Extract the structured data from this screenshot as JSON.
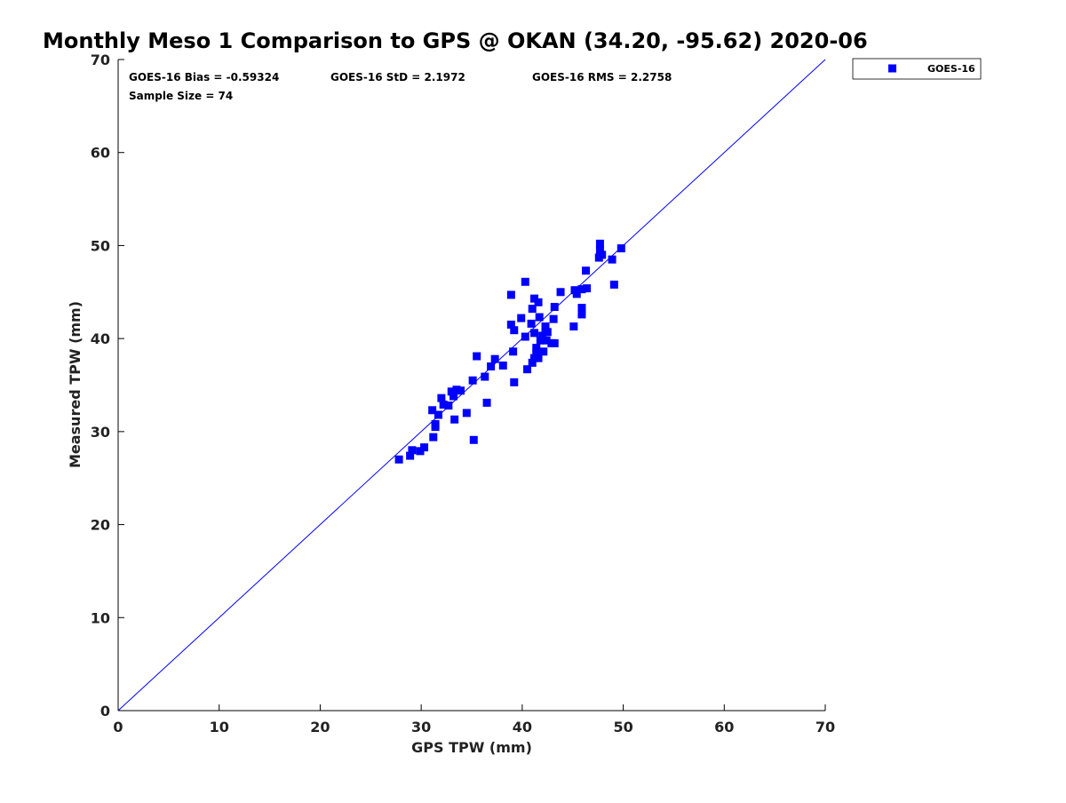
{
  "chart_data": {
    "type": "scatter",
    "title": "Monthly Meso 1 Comparison to GPS @ OKAN (34.20, -95.62) 2020-06",
    "xlabel": "GPS TPW (mm)",
    "ylabel": "Measured TPW (mm)",
    "xlim": [
      0,
      70
    ],
    "ylim": [
      0,
      70
    ],
    "xticks": [
      "0",
      "10",
      "20",
      "30",
      "40",
      "50",
      "60",
      "70"
    ],
    "yticks": [
      "0",
      "10",
      "20",
      "30",
      "40",
      "50",
      "60",
      "70"
    ],
    "grid": false,
    "legend_position": "top-right-outside",
    "stats": {
      "bias": "GOES-16 Bias = -0.59324",
      "std": "GOES-16 StD = 2.1972",
      "rms": "GOES-16 RMS = 2.2758",
      "sample_size": "Sample Size = 74"
    },
    "reference_line": {
      "name": "1:1",
      "x": [
        0,
        70
      ],
      "y": [
        0,
        70
      ],
      "color": "#0000ff"
    },
    "series": [
      {
        "name": "GOES-16",
        "marker": "square",
        "color": "#0000ff",
        "points": [
          [
            27.8,
            27.0
          ],
          [
            28.9,
            27.4
          ],
          [
            29.1,
            28.0
          ],
          [
            29.9,
            27.9
          ],
          [
            30.3,
            28.3
          ],
          [
            31.2,
            29.4
          ],
          [
            31.1,
            32.3
          ],
          [
            31.4,
            30.5
          ],
          [
            31.4,
            30.8
          ],
          [
            31.7,
            31.8
          ],
          [
            32.0,
            33.6
          ],
          [
            32.2,
            32.9
          ],
          [
            32.7,
            32.8
          ],
          [
            33.0,
            34.3
          ],
          [
            33.2,
            33.8
          ],
          [
            33.3,
            31.3
          ],
          [
            33.5,
            34.5
          ],
          [
            33.9,
            34.4
          ],
          [
            34.5,
            32.0
          ],
          [
            35.1,
            35.5
          ],
          [
            35.2,
            29.1
          ],
          [
            35.5,
            38.1
          ],
          [
            36.3,
            35.9
          ],
          [
            36.5,
            33.1
          ],
          [
            36.9,
            37.0
          ],
          [
            37.3,
            37.8
          ],
          [
            38.1,
            37.1
          ],
          [
            38.9,
            41.5
          ],
          [
            38.9,
            44.7
          ],
          [
            39.1,
            38.6
          ],
          [
            39.2,
            40.9
          ],
          [
            39.2,
            35.3
          ],
          [
            39.9,
            42.2
          ],
          [
            40.3,
            40.2
          ],
          [
            40.3,
            46.1
          ],
          [
            40.5,
            36.7
          ],
          [
            40.9,
            41.6
          ],
          [
            41.0,
            37.4
          ],
          [
            41.0,
            43.2
          ],
          [
            41.2,
            44.3
          ],
          [
            41.2,
            37.9
          ],
          [
            41.2,
            40.6
          ],
          [
            41.4,
            38.4
          ],
          [
            41.4,
            39.0
          ],
          [
            41.6,
            37.9
          ],
          [
            41.6,
            43.9
          ],
          [
            41.7,
            42.3
          ],
          [
            41.8,
            39.8
          ],
          [
            42.0,
            40.3
          ],
          [
            42.1,
            38.6
          ],
          [
            42.3,
            41.3
          ],
          [
            42.3,
            40.9
          ],
          [
            42.4,
            39.8
          ],
          [
            42.5,
            40.7
          ],
          [
            42.9,
            39.5
          ],
          [
            43.1,
            42.1
          ],
          [
            43.2,
            43.4
          ],
          [
            43.2,
            39.5
          ],
          [
            43.8,
            45.0
          ],
          [
            45.1,
            41.3
          ],
          [
            45.2,
            45.2
          ],
          [
            45.4,
            44.8
          ],
          [
            45.9,
            43.3
          ],
          [
            45.9,
            42.6
          ],
          [
            45.9,
            45.3
          ],
          [
            46.3,
            47.3
          ],
          [
            46.4,
            45.4
          ],
          [
            47.6,
            48.7
          ],
          [
            47.7,
            49.5
          ],
          [
            47.7,
            50.2
          ],
          [
            47.9,
            49.0
          ],
          [
            48.9,
            48.5
          ],
          [
            49.1,
            45.8
          ],
          [
            49.8,
            49.7
          ]
        ]
      }
    ]
  }
}
